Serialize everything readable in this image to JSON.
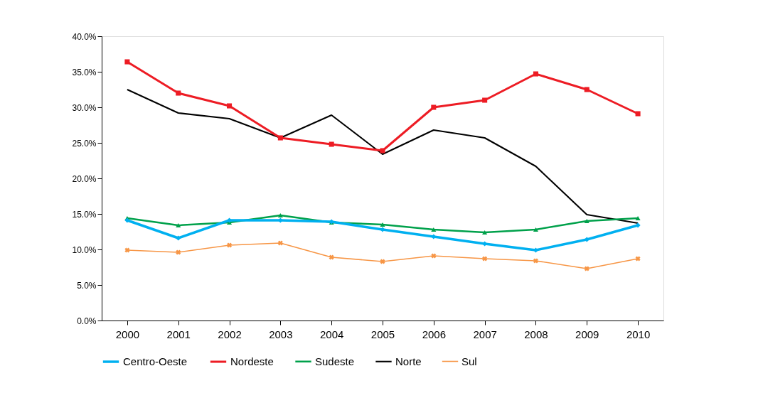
{
  "chart_data": {
    "type": "line",
    "categories": [
      "2000",
      "2001",
      "2002",
      "2003",
      "2004",
      "2005",
      "2006",
      "2007",
      "2008",
      "2009",
      "2010"
    ],
    "series": [
      {
        "name": "Centro-Oeste",
        "color": "#00b0f0",
        "marker": "diamond",
        "values": [
          14.1,
          11.6,
          14.1,
          14.1,
          13.9,
          12.8,
          11.8,
          10.8,
          9.9,
          11.4,
          13.4
        ]
      },
      {
        "name": "Nordeste",
        "color": "#ed1c24",
        "marker": "square",
        "values": [
          36.4,
          32.0,
          30.2,
          25.7,
          24.8,
          23.9,
          30.0,
          31.0,
          34.7,
          32.5,
          29.1
        ]
      },
      {
        "name": "Sudeste",
        "color": "#00a14b",
        "marker": "triangle",
        "values": [
          14.4,
          13.4,
          13.8,
          14.8,
          13.8,
          13.5,
          12.8,
          12.4,
          12.8,
          14.0,
          14.4
        ]
      },
      {
        "name": "Norte",
        "color": "#000000",
        "marker": "none",
        "values": [
          32.5,
          29.2,
          28.4,
          25.7,
          28.9,
          23.4,
          26.8,
          25.7,
          21.7,
          14.9,
          13.7
        ]
      },
      {
        "name": "Sul",
        "color": "#f79646",
        "marker": "cross",
        "values": [
          9.9,
          9.6,
          10.6,
          10.9,
          8.9,
          8.3,
          9.1,
          8.7,
          8.4,
          7.3,
          8.7
        ]
      }
    ],
    "ylim": [
      0,
      40
    ],
    "yticks": [
      {
        "value": 0,
        "label": "0.0%"
      },
      {
        "value": 5,
        "label": "5.0%"
      },
      {
        "value": 10,
        "label": "10.0%"
      },
      {
        "value": 15,
        "label": "15.0%"
      },
      {
        "value": 20,
        "label": "20.0%"
      },
      {
        "value": 25,
        "label": "25.0%"
      },
      {
        "value": 30,
        "label": "30.0%"
      },
      {
        "value": 35,
        "label": "35.0%"
      },
      {
        "value": 40,
        "label": "40.0%"
      }
    ],
    "grid": false,
    "legend": "bottom",
    "line_style": "solid"
  }
}
